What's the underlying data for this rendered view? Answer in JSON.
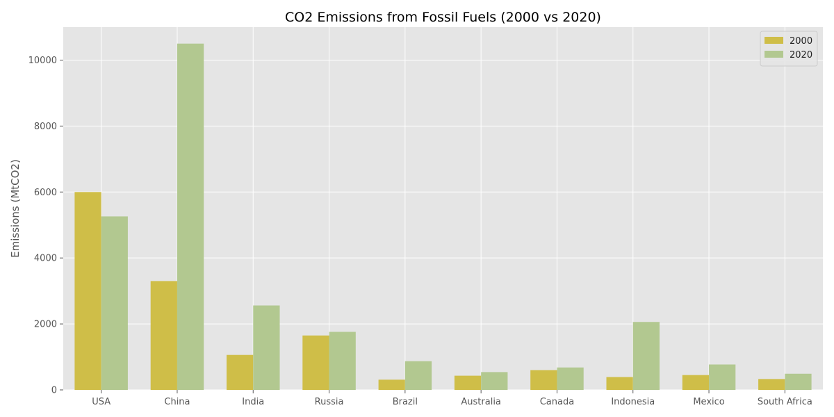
{
  "chart_data": {
    "type": "bar",
    "title": "CO2 Emissions from Fossil Fuels (2000 vs 2020)",
    "xlabel": "",
    "ylabel": "Emissions (MtCO2)",
    "categories": [
      "USA",
      "China",
      "India",
      "Russia",
      "Brazil",
      "Australia",
      "Canada",
      "Indonesia",
      "Mexico",
      "South Africa"
    ],
    "series": [
      {
        "name": "2000",
        "color": "#cfbe48",
        "values": [
          6000,
          3300,
          1060,
          1650,
          310,
          430,
          600,
          390,
          450,
          330
        ]
      },
      {
        "name": "2020",
        "color": "#b2c890",
        "values": [
          5260,
          10500,
          2560,
          1760,
          870,
          540,
          680,
          2060,
          770,
          490
        ]
      }
    ],
    "ylim": [
      0,
      11000
    ],
    "yticks": [
      0,
      2000,
      4000,
      6000,
      8000,
      10000
    ],
    "grid": true,
    "legend": "top-right",
    "style": {
      "background": "#e5e5e5",
      "grid_color": "#ffffff"
    }
  }
}
